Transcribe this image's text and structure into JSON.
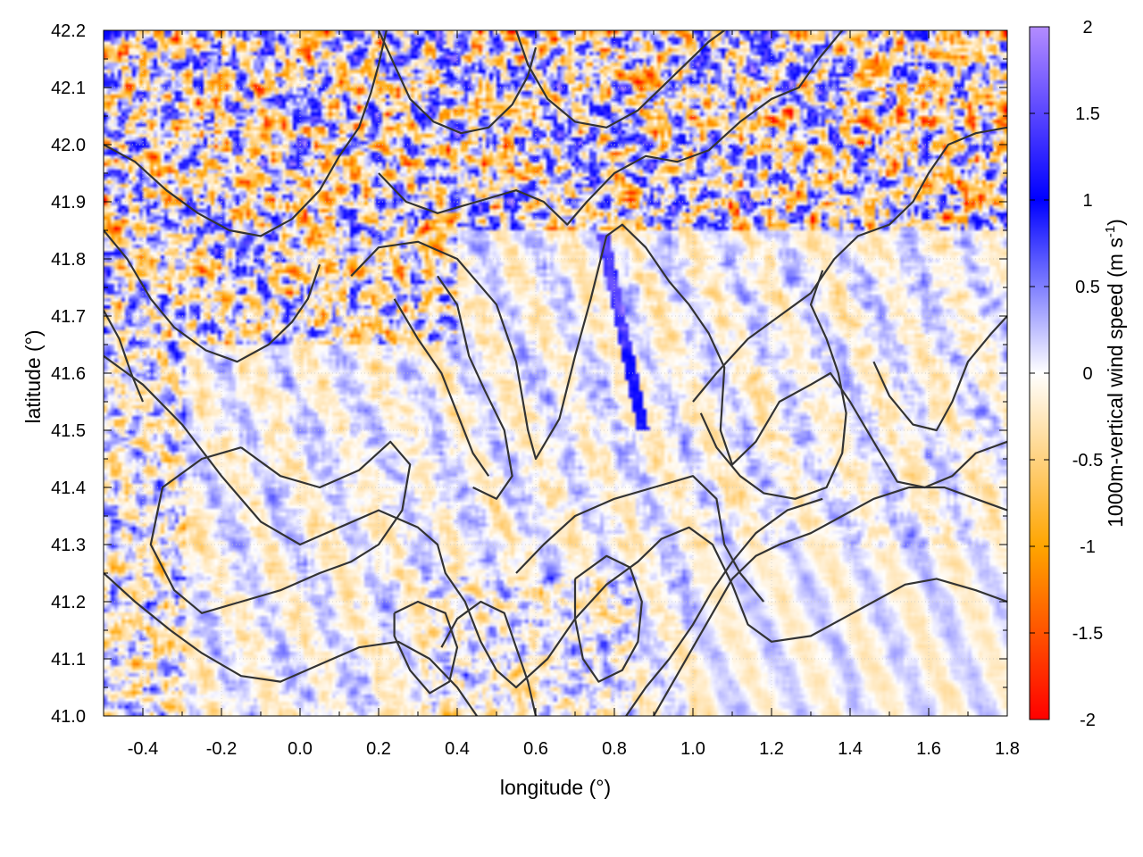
{
  "chart_data": {
    "type": "heatmap",
    "title": "",
    "xlabel": "longitude (°)",
    "ylabel": "latitude (°)",
    "colorbar_label": "1000m-vertical wind speed (m s",
    "colorbar_label_sup": "-1",
    "colorbar_label_end": ")",
    "xlim": [
      -0.5,
      1.8
    ],
    "ylim": [
      41.0,
      42.2
    ],
    "zlim": [
      -2,
      2
    ],
    "x_ticks": [
      -0.4,
      -0.2,
      0.0,
      0.2,
      0.4,
      0.6,
      0.8,
      1.0,
      1.2,
      1.4,
      1.6,
      1.8
    ],
    "x_tick_labels": [
      "-0.4",
      "-0.2",
      "0.0",
      "0.2",
      "0.4",
      "0.6",
      "0.8",
      "1.0",
      "1.2",
      "1.4",
      "1.6",
      "1.8"
    ],
    "y_ticks": [
      41.0,
      41.1,
      41.2,
      41.3,
      41.4,
      41.5,
      41.6,
      41.7,
      41.8,
      41.9,
      42.0,
      42.1,
      42.2
    ],
    "y_tick_labels": [
      "41.0",
      "41.1",
      "41.2",
      "41.3",
      "41.4",
      "41.5",
      "41.6",
      "41.7",
      "41.8",
      "41.9",
      "42.0",
      "42.1",
      "42.2"
    ],
    "colorbar_ticks": [
      -2,
      -1.5,
      -1,
      -0.5,
      0,
      0.5,
      1,
      1.5,
      2
    ],
    "colorbar_tick_labels": [
      "-2",
      "-1.5",
      "-1",
      "-0.5",
      "0",
      "0.5",
      "1",
      "1.5",
      "2"
    ],
    "colormap": [
      {
        "value": -2.0,
        "color": "#ff0000"
      },
      {
        "value": -1.0,
        "color": "#ffa500"
      },
      {
        "value": 0.0,
        "color": "#ffffff"
      },
      {
        "value": 1.0,
        "color": "#0000ff"
      },
      {
        "value": 2.0,
        "color": "#b38cff"
      }
    ],
    "grid": true,
    "contour_color": "#333333",
    "contours": [
      [
        [
          0.13,
          41.77
        ],
        [
          0.2,
          41.82
        ],
        [
          0.3,
          41.83
        ],
        [
          0.4,
          41.8
        ],
        [
          0.5,
          41.72
        ],
        [
          0.55,
          41.62
        ],
        [
          0.58,
          41.5
        ],
        [
          0.6,
          41.45
        ],
        [
          0.66,
          41.52
        ],
        [
          0.7,
          41.63
        ],
        [
          0.74,
          41.73
        ],
        [
          0.78,
          41.84
        ],
        [
          0.82,
          41.86
        ],
        [
          0.88,
          41.82
        ],
        [
          0.94,
          41.76
        ],
        [
          0.99,
          41.72
        ],
        [
          1.04,
          41.67
        ],
        [
          1.08,
          41.61
        ],
        [
          1.07,
          41.5
        ],
        [
          1.1,
          41.44
        ],
        [
          1.16,
          41.48
        ],
        [
          1.22,
          41.55
        ],
        [
          1.3,
          41.58
        ],
        [
          1.35,
          41.6
        ],
        [
          1.4,
          41.55
        ],
        [
          1.46,
          41.48
        ],
        [
          1.52,
          41.41
        ],
        [
          1.59,
          41.4
        ],
        [
          1.66,
          41.42
        ],
        [
          1.72,
          41.46
        ],
        [
          1.8,
          41.48
        ]
      ],
      [
        [
          0.35,
          41.77
        ],
        [
          0.4,
          41.72
        ],
        [
          0.43,
          41.63
        ],
        [
          0.47,
          41.57
        ],
        [
          0.52,
          41.5
        ],
        [
          0.54,
          41.42
        ],
        [
          0.5,
          41.38
        ],
        [
          0.44,
          41.4
        ]
      ],
      [
        [
          -0.5,
          41.63
        ],
        [
          -0.4,
          41.58
        ],
        [
          -0.3,
          41.51
        ],
        [
          -0.2,
          41.42
        ],
        [
          -0.1,
          41.34
        ],
        [
          0.0,
          41.3
        ],
        [
          0.1,
          41.33
        ],
        [
          0.2,
          41.36
        ],
        [
          0.3,
          41.33
        ],
        [
          0.35,
          41.3
        ],
        [
          0.37,
          41.25
        ],
        [
          0.42,
          41.2
        ],
        [
          0.46,
          41.13
        ],
        [
          0.5,
          41.08
        ],
        [
          0.55,
          41.05
        ],
        [
          0.63,
          41.1
        ],
        [
          0.7,
          41.17
        ],
        [
          0.78,
          41.23
        ],
        [
          0.86,
          41.27
        ],
        [
          0.92,
          41.31
        ],
        [
          0.99,
          41.33
        ],
        [
          1.05,
          41.3
        ],
        [
          1.1,
          41.23
        ],
        [
          1.14,
          41.16
        ],
        [
          1.2,
          41.13
        ],
        [
          1.3,
          41.14
        ],
        [
          1.38,
          41.17
        ],
        [
          1.46,
          41.2
        ],
        [
          1.54,
          41.23
        ],
        [
          1.62,
          41.24
        ],
        [
          1.72,
          41.22
        ],
        [
          1.8,
          41.2
        ]
      ],
      [
        [
          -0.15,
          41.47
        ],
        [
          -0.05,
          41.42
        ],
        [
          0.05,
          41.4
        ],
        [
          0.15,
          41.43
        ],
        [
          0.23,
          41.48
        ],
        [
          0.28,
          41.44
        ],
        [
          0.26,
          41.36
        ],
        [
          0.2,
          41.3
        ],
        [
          0.13,
          41.27
        ],
        [
          0.05,
          41.25
        ],
        [
          -0.05,
          41.22
        ],
        [
          -0.15,
          41.2
        ],
        [
          -0.25,
          41.18
        ],
        [
          -0.32,
          41.22
        ],
        [
          -0.38,
          41.3
        ],
        [
          -0.35,
          41.4
        ],
        [
          -0.25,
          41.45
        ],
        [
          -0.15,
          41.47
        ]
      ],
      [
        [
          -0.5,
          41.25
        ],
        [
          -0.42,
          41.2
        ],
        [
          -0.33,
          41.15
        ],
        [
          -0.25,
          41.11
        ],
        [
          -0.15,
          41.07
        ],
        [
          -0.05,
          41.06
        ],
        [
          0.05,
          41.09
        ],
        [
          0.15,
          41.12
        ],
        [
          0.25,
          41.13
        ],
        [
          0.33,
          41.1
        ],
        [
          0.4,
          41.05
        ],
        [
          0.45,
          41.0
        ]
      ],
      [
        [
          0.24,
          41.18
        ],
        [
          0.3,
          41.2
        ],
        [
          0.37,
          41.18
        ],
        [
          0.4,
          41.12
        ],
        [
          0.38,
          41.06
        ],
        [
          0.33,
          41.04
        ],
        [
          0.28,
          41.08
        ],
        [
          0.24,
          41.14
        ],
        [
          0.24,
          41.18
        ]
      ],
      [
        [
          0.55,
          41.25
        ],
        [
          0.62,
          41.3
        ],
        [
          0.7,
          41.35
        ],
        [
          0.8,
          41.38
        ],
        [
          0.9,
          41.4
        ],
        [
          1.0,
          41.42
        ],
        [
          1.06,
          41.38
        ],
        [
          1.08,
          41.3
        ],
        [
          1.12,
          41.25
        ],
        [
          1.18,
          41.2
        ]
      ],
      [
        [
          0.7,
          41.24
        ],
        [
          0.78,
          41.28
        ],
        [
          0.84,
          41.26
        ],
        [
          0.87,
          41.2
        ],
        [
          0.86,
          41.13
        ],
        [
          0.82,
          41.08
        ],
        [
          0.76,
          41.06
        ],
        [
          0.72,
          41.1
        ],
        [
          0.7,
          41.17
        ],
        [
          0.7,
          41.24
        ]
      ],
      [
        [
          0.9,
          41.0
        ],
        [
          0.95,
          41.06
        ],
        [
          1.0,
          41.12
        ],
        [
          1.05,
          41.18
        ],
        [
          1.1,
          41.24
        ],
        [
          1.16,
          41.28
        ],
        [
          1.22,
          41.3
        ],
        [
          1.3,
          41.32
        ],
        [
          1.38,
          41.35
        ],
        [
          1.46,
          41.38
        ],
        [
          1.55,
          41.4
        ],
        [
          1.64,
          41.4
        ],
        [
          1.72,
          41.38
        ],
        [
          1.8,
          41.36
        ]
      ],
      [
        [
          0.83,
          41.0
        ],
        [
          0.88,
          41.05
        ],
        [
          0.94,
          41.1
        ],
        [
          1.0,
          41.16
        ],
        [
          1.05,
          41.22
        ],
        [
          1.1,
          41.27
        ],
        [
          1.16,
          41.32
        ],
        [
          1.24,
          41.36
        ],
        [
          1.33,
          41.38
        ]
      ],
      [
        [
          1.0,
          41.55
        ],
        [
          1.06,
          41.6
        ],
        [
          1.14,
          41.66
        ],
        [
          1.22,
          41.7
        ],
        [
          1.3,
          41.74
        ],
        [
          1.36,
          41.8
        ],
        [
          1.42,
          41.84
        ],
        [
          1.5,
          41.86
        ],
        [
          1.56,
          41.9
        ],
        [
          1.6,
          41.95
        ],
        [
          1.65,
          42.0
        ],
        [
          1.72,
          42.02
        ],
        [
          1.8,
          42.03
        ]
      ],
      [
        [
          0.55,
          42.2
        ],
        [
          0.58,
          42.14
        ],
        [
          0.63,
          42.08
        ],
        [
          0.7,
          42.04
        ],
        [
          0.78,
          42.03
        ],
        [
          0.86,
          42.06
        ],
        [
          0.92,
          42.1
        ],
        [
          0.98,
          42.14
        ],
        [
          1.04,
          42.18
        ],
        [
          1.08,
          42.2
        ]
      ],
      [
        [
          0.2,
          42.2
        ],
        [
          0.24,
          42.14
        ],
        [
          0.28,
          42.08
        ],
        [
          0.34,
          42.04
        ],
        [
          0.41,
          42.02
        ],
        [
          0.48,
          42.03
        ],
        [
          0.54,
          42.07
        ],
        [
          0.58,
          42.12
        ],
        [
          0.6,
          42.17
        ]
      ],
      [
        [
          0.2,
          41.95
        ],
        [
          0.27,
          41.9
        ],
        [
          0.35,
          41.88
        ],
        [
          0.45,
          41.9
        ],
        [
          0.55,
          41.92
        ],
        [
          0.62,
          41.9
        ],
        [
          0.68,
          41.86
        ],
        [
          0.73,
          41.9
        ],
        [
          0.8,
          41.95
        ],
        [
          0.88,
          41.98
        ],
        [
          0.96,
          41.97
        ],
        [
          1.04,
          41.99
        ],
        [
          1.12,
          42.04
        ],
        [
          1.2,
          42.08
        ],
        [
          1.27,
          42.1
        ],
        [
          1.32,
          42.15
        ],
        [
          1.38,
          42.2
        ]
      ],
      [
        [
          -0.5,
          42.0
        ],
        [
          -0.42,
          41.97
        ],
        [
          -0.34,
          41.92
        ],
        [
          -0.26,
          41.88
        ],
        [
          -0.18,
          41.85
        ],
        [
          -0.1,
          41.84
        ],
        [
          -0.02,
          41.87
        ],
        [
          0.05,
          41.92
        ],
        [
          0.1,
          41.98
        ],
        [
          0.15,
          42.03
        ],
        [
          0.18,
          42.09
        ],
        [
          0.2,
          42.14
        ],
        [
          0.22,
          42.2
        ]
      ],
      [
        [
          -0.5,
          41.85
        ],
        [
          -0.44,
          41.8
        ],
        [
          -0.38,
          41.73
        ],
        [
          -0.32,
          41.68
        ],
        [
          -0.24,
          41.64
        ],
        [
          -0.16,
          41.62
        ],
        [
          -0.08,
          41.65
        ],
        [
          -0.02,
          41.69
        ],
        [
          0.02,
          41.73
        ],
        [
          0.05,
          41.79
        ]
      ],
      [
        [
          -0.5,
          41.71
        ],
        [
          -0.46,
          41.66
        ],
        [
          -0.43,
          41.6
        ],
        [
          -0.4,
          41.55
        ]
      ],
      [
        [
          1.02,
          41.53
        ],
        [
          1.06,
          41.47
        ],
        [
          1.12,
          41.42
        ],
        [
          1.18,
          41.39
        ],
        [
          1.26,
          41.38
        ],
        [
          1.34,
          41.4
        ],
        [
          1.38,
          41.46
        ],
        [
          1.39,
          41.53
        ],
        [
          1.37,
          41.6
        ],
        [
          1.34,
          41.66
        ],
        [
          1.3,
          41.72
        ],
        [
          1.33,
          41.78
        ]
      ],
      [
        [
          0.24,
          41.73
        ],
        [
          0.3,
          41.66
        ],
        [
          0.36,
          41.6
        ],
        [
          0.4,
          41.53
        ],
        [
          0.44,
          41.46
        ],
        [
          0.48,
          41.42
        ]
      ],
      [
        [
          0.36,
          41.12
        ],
        [
          0.4,
          41.17
        ],
        [
          0.46,
          41.2
        ],
        [
          0.52,
          41.18
        ],
        [
          0.55,
          41.12
        ],
        [
          0.58,
          41.06
        ],
        [
          0.6,
          41.0
        ]
      ],
      [
        [
          1.46,
          41.62
        ],
        [
          1.5,
          41.56
        ],
        [
          1.56,
          41.51
        ],
        [
          1.62,
          41.5
        ],
        [
          1.66,
          41.55
        ],
        [
          1.7,
          41.62
        ],
        [
          1.76,
          41.67
        ],
        [
          1.8,
          41.7
        ]
      ]
    ]
  }
}
